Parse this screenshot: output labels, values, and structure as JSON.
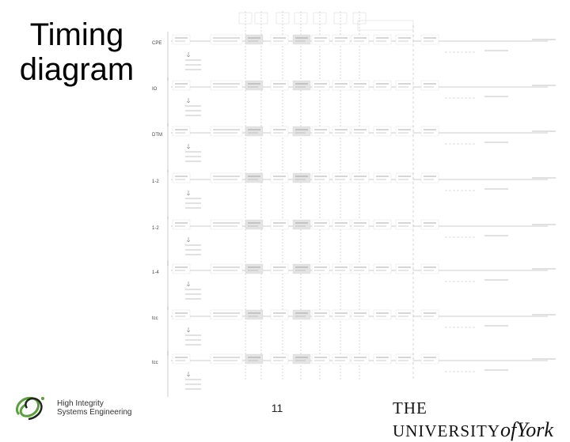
{
  "slide": {
    "title_line1": "Timing",
    "title_line2": "diagram",
    "page_number": "11"
  },
  "diagram": {
    "row_labels": [
      "CPE",
      "IO",
      "DTM",
      "1-2",
      "1-2",
      "1-4",
      "tcc",
      "tcc"
    ]
  },
  "footer": {
    "org_line1": "High Integrity",
    "org_line2": "Systems Engineering",
    "university_prefix": "THE UNIVERSITY",
    "university_of": "of",
    "university_name": "York"
  },
  "colors": {
    "grid_line": "#999999",
    "shaded_cell": "#e4e4e4",
    "logo_green": "#5aa03c"
  }
}
